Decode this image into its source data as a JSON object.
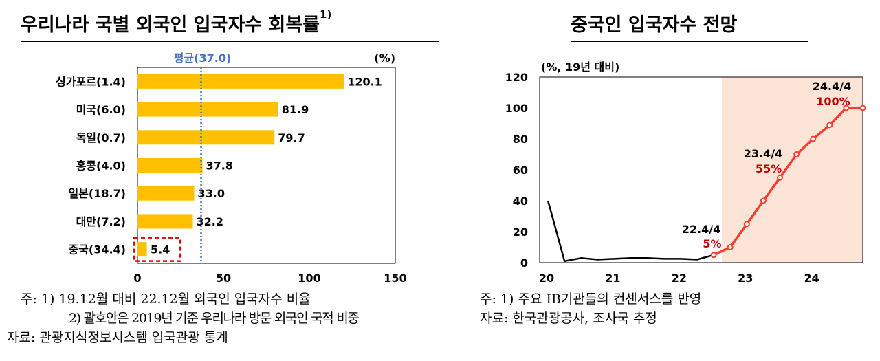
{
  "left": {
    "title": "우리나라 국별 외국인 입국자수 회복률",
    "title_sup": "1)",
    "unit": "(%)",
    "avg_label": "평균(37.0)",
    "avg_color": "#4472C4",
    "bar_color": "#FFC000",
    "highlight_color": "#E00000",
    "highlight_category": "중국(34.4)"
  },
  "right": {
    "title": "중국인 입국자수 전망",
    "unit": "(%, 19년 대비)",
    "shade_color": "#FCE4D6",
    "line_color": "#FF3B30",
    "annotations": [
      {
        "label": "22.4/4",
        "value_label": "5%"
      },
      {
        "label": "23.4/4",
        "value_label": "55%"
      },
      {
        "label": "24.4/4",
        "value_label": "100%"
      }
    ]
  },
  "notes": {
    "line1": "주: 1) 19.12월 대비 22.12월 외국인 입국자수 비율",
    "line2": "2) 괄호안은 2019년 기준 우리나라 방문 외국인 국적 비중",
    "line3": "자료: 관광지식정보시스템 입국관광 통계",
    "right_line1": "주: 1) 주요 IB기관들의 컨센서스를 반영",
    "right_line2": "자료: 한국관광공사, 조사국 추정"
  },
  "chart_data": [
    {
      "type": "bar",
      "orientation": "horizontal",
      "categories": [
        "싱가포르(1.4)",
        "미국(6.0)",
        "독일(0.7)",
        "홍콩(4.0)",
        "일본(18.7)",
        "대만(7.2)",
        "중국(34.4)"
      ],
      "values": [
        120.1,
        81.9,
        79.7,
        37.8,
        33.0,
        32.2,
        5.4
      ],
      "xlim": [
        0,
        150
      ],
      "xticks": [
        0,
        50,
        100,
        150
      ],
      "reference_line": 37.0
    },
    {
      "type": "line",
      "xlim": [
        20,
        24.875
      ],
      "ylim": [
        0,
        120
      ],
      "xticks": [
        20,
        21,
        22,
        23,
        24
      ],
      "xtick_labels": [
        "20",
        "21",
        "22",
        "23",
        "24"
      ],
      "yticks": [
        0,
        20,
        40,
        60,
        80,
        100,
        120
      ],
      "shaded_from": 22.75,
      "series": [
        {
          "x": [
            20.125,
            20.375,
            20.625,
            20.875,
            21.125,
            21.375,
            21.625,
            21.875,
            22.125,
            22.375,
            22.625
          ],
          "values": [
            40,
            1,
            3,
            2,
            2.5,
            3,
            3,
            2.5,
            2.5,
            2,
            5
          ],
          "color": "#000000"
        },
        {
          "x": [
            22.625,
            22.875,
            23.125,
            23.375,
            23.625,
            23.875,
            24.125,
            24.375,
            24.625,
            24.875
          ],
          "values": [
            5,
            10,
            25,
            40,
            55,
            70,
            80,
            89,
            100,
            100
          ],
          "color": "#FF3B30"
        }
      ]
    }
  ]
}
